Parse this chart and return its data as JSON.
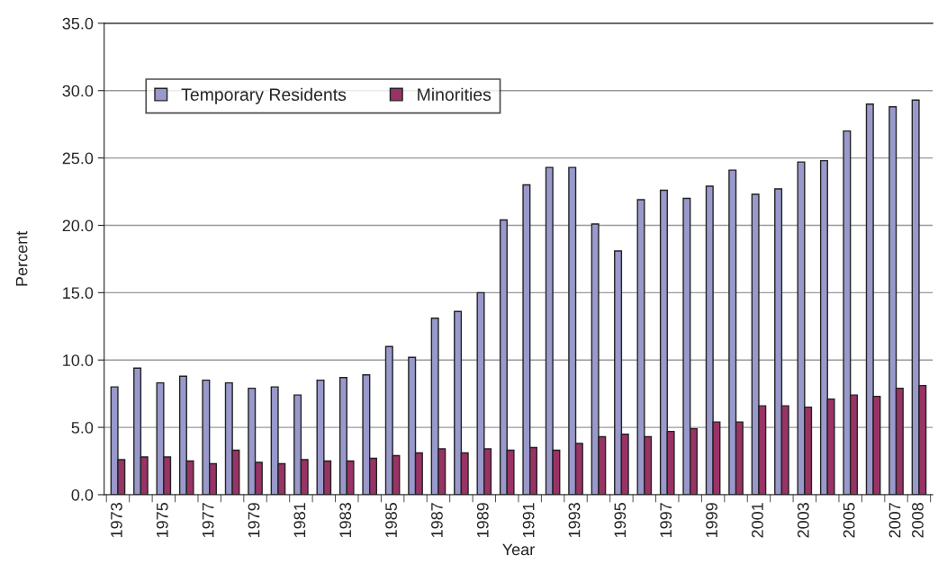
{
  "chart_data": {
    "type": "bar",
    "xlabel": "Year",
    "ylabel": "Percent",
    "categories": [
      "1973",
      null,
      "1975",
      null,
      "1977",
      null,
      "1979",
      null,
      "1981",
      null,
      "1983",
      null,
      "1985",
      null,
      "1987",
      null,
      "1989",
      null,
      "1991",
      null,
      "1993",
      null,
      "1995",
      null,
      "1997",
      null,
      "1999",
      null,
      "2001",
      null,
      "2003",
      null,
      "2005",
      null,
      "2007",
      "2008"
    ],
    "series": [
      {
        "name": "Temporary Residents",
        "color": "#9999cc",
        "values": [
          8.0,
          9.4,
          8.3,
          8.8,
          8.5,
          8.3,
          7.9,
          8.0,
          7.4,
          8.5,
          8.7,
          8.9,
          11.0,
          10.2,
          13.1,
          13.6,
          15.0,
          20.4,
          23.0,
          24.3,
          24.3,
          20.1,
          18.1,
          21.9,
          22.6,
          22.0,
          22.9,
          24.1,
          22.3,
          22.7,
          24.7,
          24.8,
          27.0,
          29.0,
          28.8,
          29.3
        ]
      },
      {
        "name": "Minorities",
        "color": "#993366",
        "values": [
          2.6,
          2.8,
          2.8,
          2.5,
          2.3,
          3.3,
          2.4,
          2.3,
          2.6,
          2.5,
          2.5,
          2.7,
          2.9,
          3.1,
          3.4,
          3.1,
          3.4,
          3.3,
          3.5,
          3.3,
          3.8,
          4.3,
          4.5,
          4.3,
          4.7,
          4.9,
          5.4,
          5.4,
          6.6,
          6.6,
          6.5,
          7.1,
          7.4,
          7.3,
          7.9,
          8.1
        ]
      }
    ],
    "ylim": [
      0,
      35
    ],
    "yticks": [
      {
        "value": 0,
        "label": "0.0"
      },
      {
        "value": 5,
        "label": "5.0"
      },
      {
        "value": 10,
        "label": "10.0"
      },
      {
        "value": 15,
        "label": "15.0"
      },
      {
        "value": 20,
        "label": "20.0"
      },
      {
        "value": 25,
        "label": "25.0"
      },
      {
        "value": 30,
        "label": "30.0"
      },
      {
        "value": 35,
        "label": "35.0"
      }
    ],
    "grid": "y",
    "legend": "top left"
  }
}
